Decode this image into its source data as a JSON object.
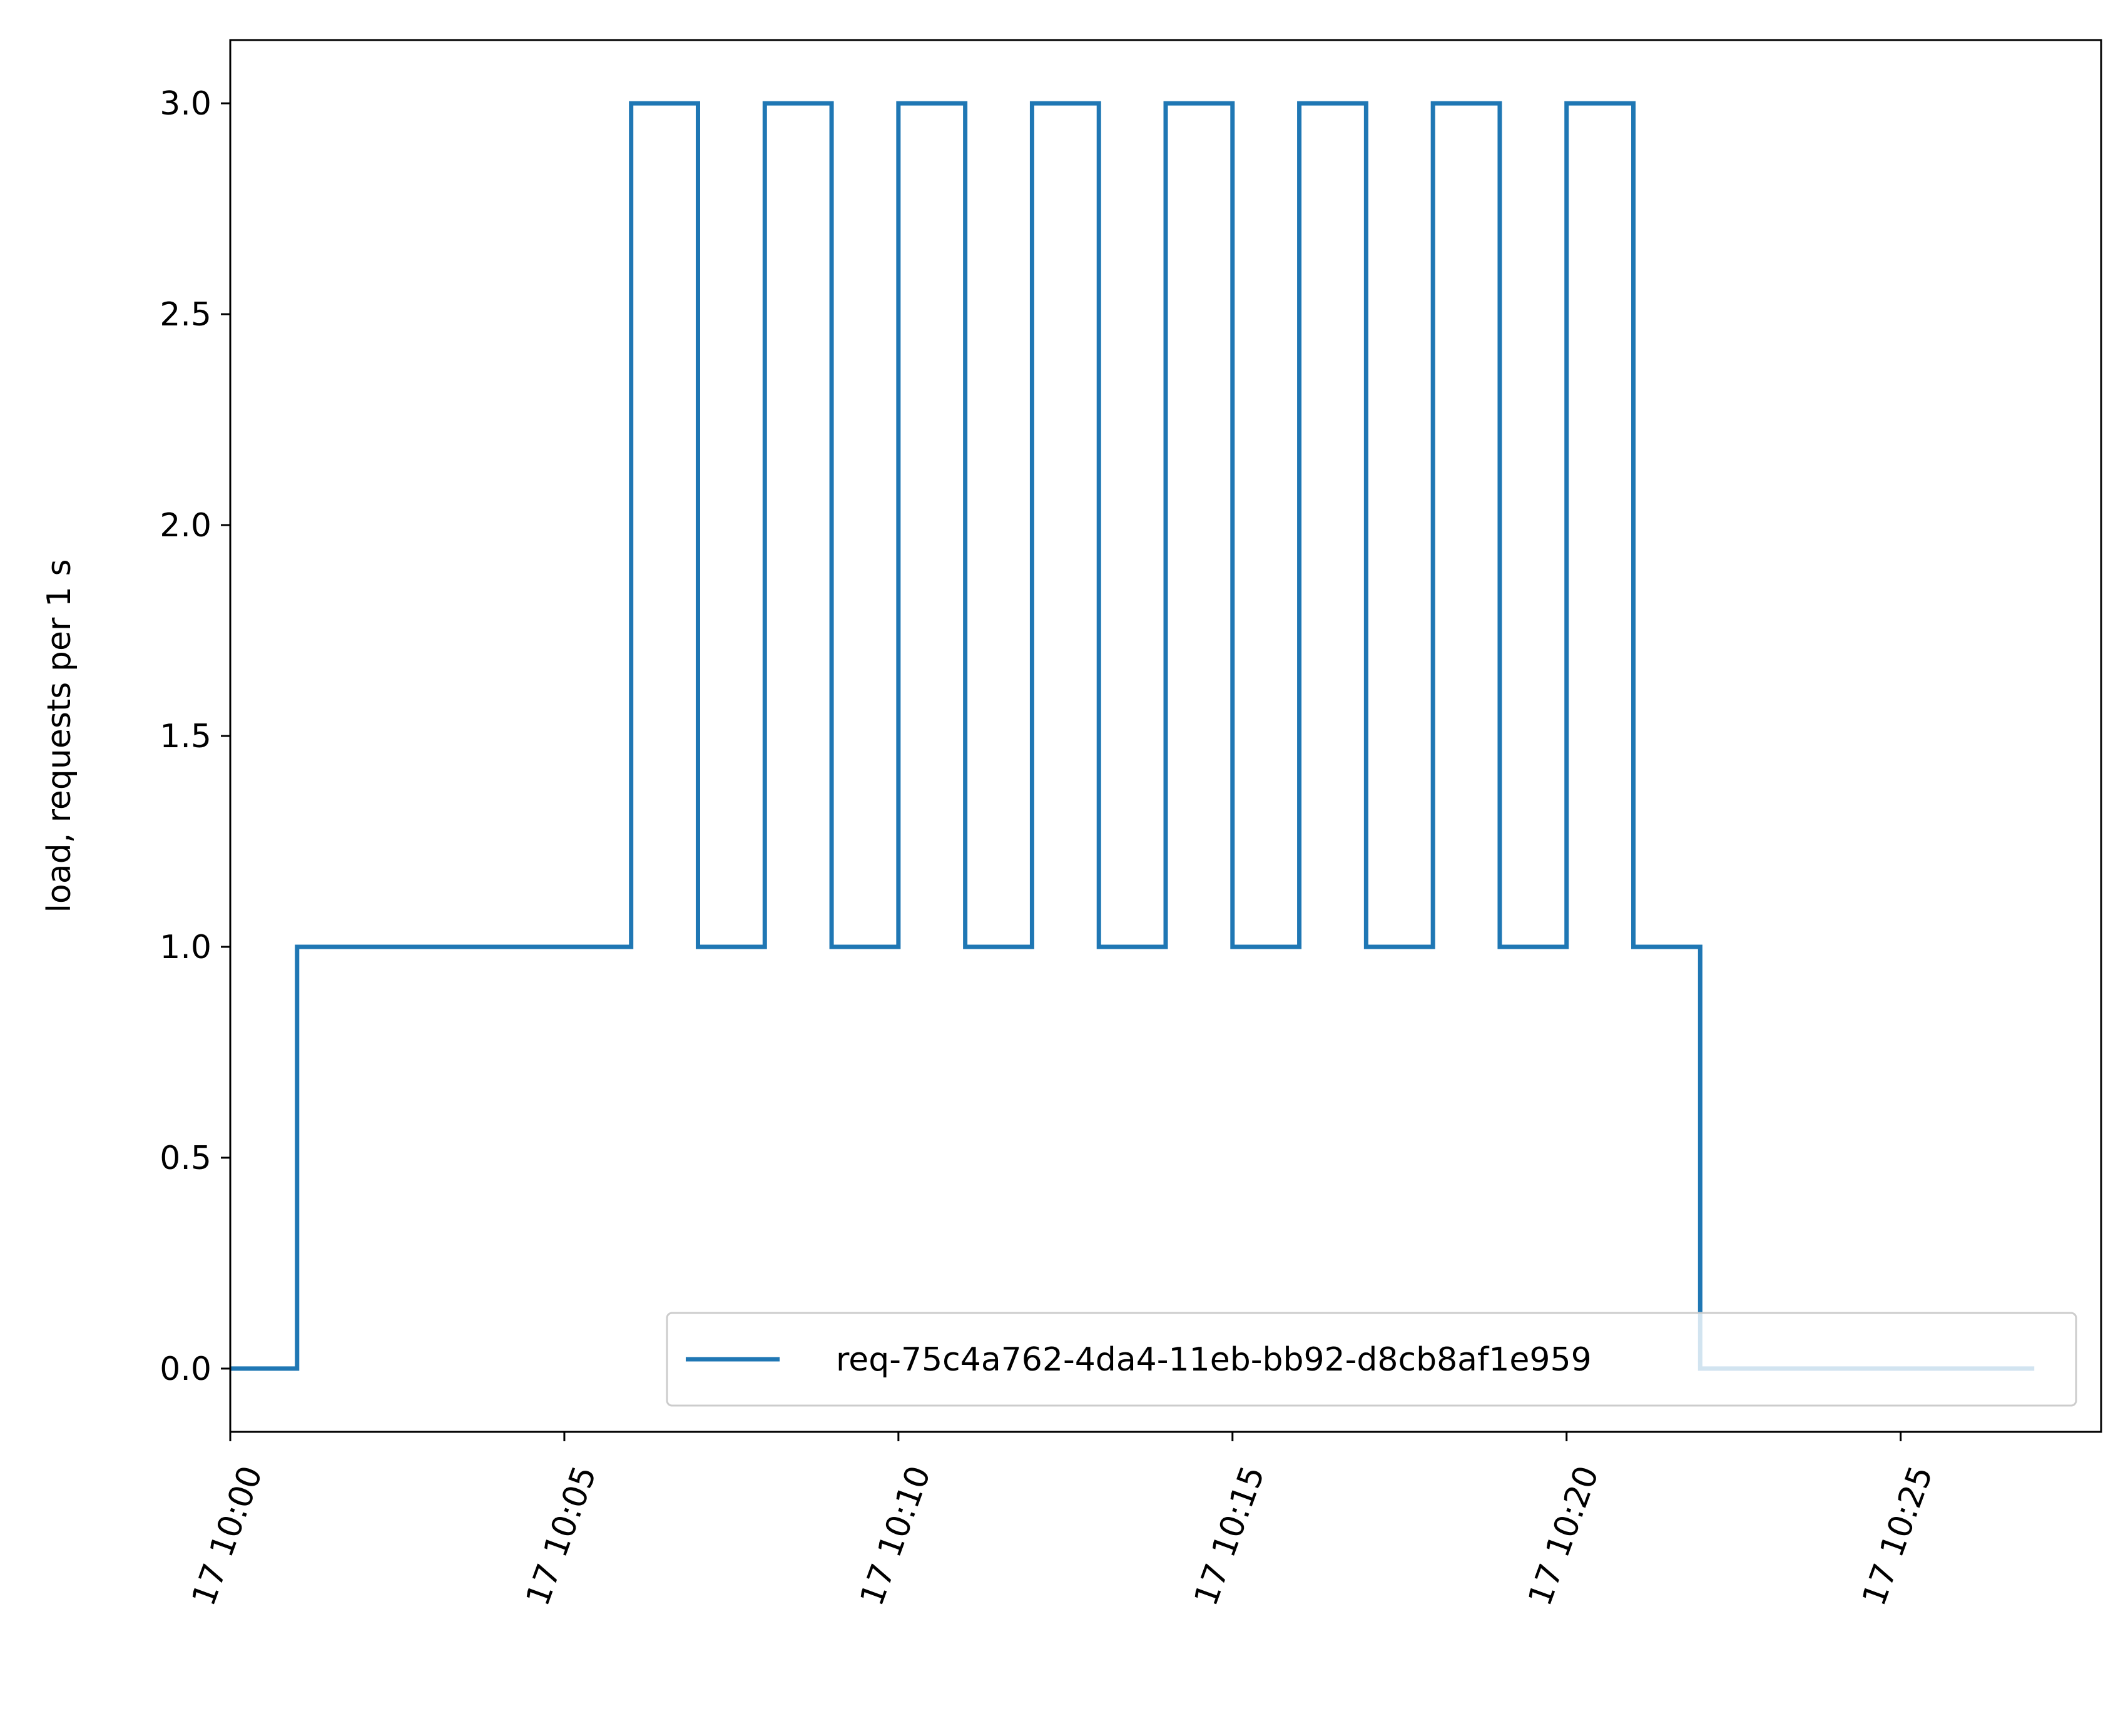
{
  "chart_data": {
    "type": "line",
    "drawstyle": "steps-post",
    "title": "",
    "xlabel": "",
    "ylabel": "load, requests per 1 s",
    "xlim": [
      "10:00",
      "10:28"
    ],
    "ylim": [
      -0.15,
      3.15
    ],
    "x_ticks": [
      "10:00",
      "10:05",
      "10:10",
      "10:15",
      "10:20",
      "10:25"
    ],
    "x_tick_labels": [
      "17 10:00",
      "17 10:05",
      "17 10:10",
      "17 10:15",
      "17 10:20",
      "17 10:25"
    ],
    "y_ticks": [
      0.0,
      0.5,
      1.0,
      1.5,
      2.0,
      2.5,
      3.0
    ],
    "y_tick_labels": [
      "0.0",
      "0.5",
      "1.0",
      "1.5",
      "2.0",
      "2.5",
      "3.0"
    ],
    "grid": false,
    "legend": {
      "placement": "lower right"
    },
    "series": [
      {
        "name": "req-75c4a762-4da4-11eb-bb92-d8cb8af1e959",
        "color": "#1f77b4",
        "x": [
          "10:00",
          "10:01",
          "10:02",
          "10:03",
          "10:04",
          "10:05",
          "10:06",
          "10:07",
          "10:08",
          "10:09",
          "10:10",
          "10:11",
          "10:12",
          "10:13",
          "10:14",
          "10:15",
          "10:16",
          "10:17",
          "10:18",
          "10:19",
          "10:20",
          "10:21",
          "10:22",
          "10:23",
          "10:24",
          "10:25",
          "10:26",
          "10:27"
        ],
        "values": [
          0,
          1,
          1,
          1,
          1,
          1,
          3,
          1,
          3,
          1,
          3,
          1,
          3,
          1,
          3,
          1,
          3,
          1,
          3,
          1,
          3,
          1,
          0,
          0,
          0,
          0,
          0,
          0
        ]
      }
    ]
  }
}
